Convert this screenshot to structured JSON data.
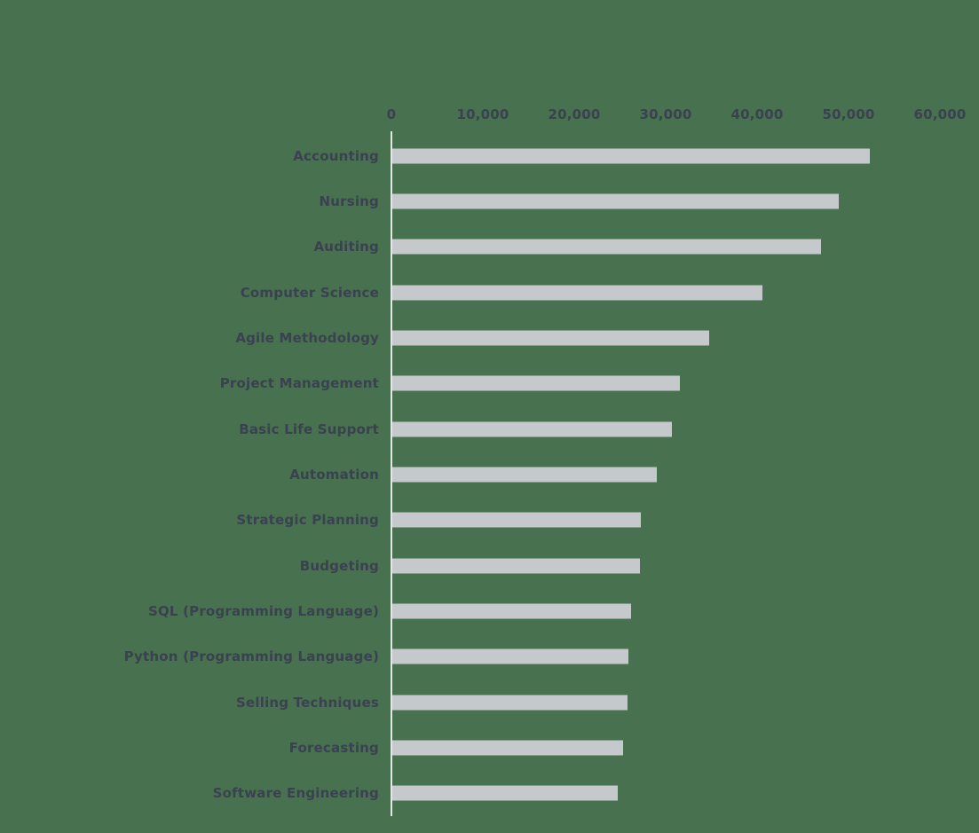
{
  "chart_data": {
    "type": "bar",
    "orientation": "horizontal",
    "title": "",
    "xlabel": "",
    "ylabel": "",
    "grid": false,
    "legend": false,
    "xlim": [
      0,
      60000
    ],
    "x_ticks": [
      0,
      10000,
      20000,
      30000,
      40000,
      50000,
      60000
    ],
    "x_tick_labels": [
      "0",
      "10,000",
      "20,000",
      "30,000",
      "40,000",
      "50,000",
      "60,000"
    ],
    "categories": [
      "Accounting",
      "Nursing",
      "Auditing",
      "Computer Science",
      "Agile Methodology",
      "Project Management",
      "Basic Life Support",
      "Automation",
      "Strategic Planning",
      "Budgeting",
      "SQL (Programming Language)",
      "Python (Programming Language)",
      "Selling Techniques",
      "Forecasting",
      "Software Engineering"
    ],
    "values": [
      52200,
      48800,
      46900,
      40500,
      34700,
      31500,
      30600,
      28900,
      27200,
      27100,
      26100,
      25800,
      25700,
      25200,
      24700
    ]
  },
  "style": {
    "background_color": "#48714F",
    "bar_color": "#C5C9CB",
    "axis_line_color": "#DFE9E1",
    "text_color": "#3A4150"
  }
}
